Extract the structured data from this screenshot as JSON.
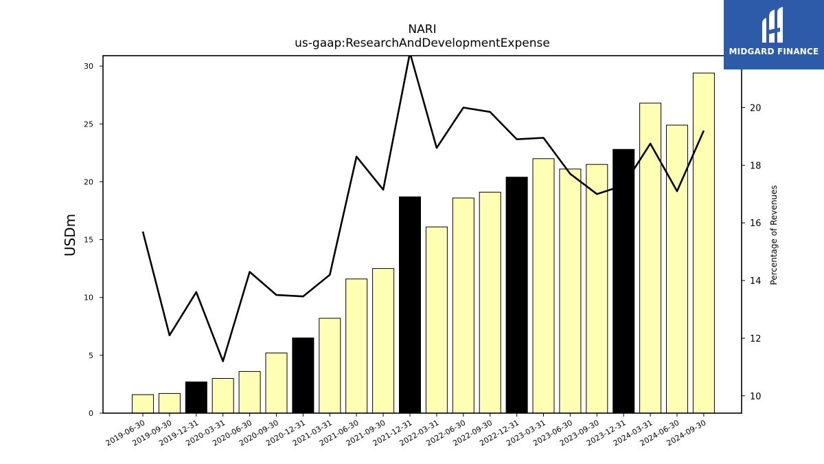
{
  "chart_data": {
    "type": "bar",
    "title": "NARI",
    "subtitle": "us-gaap:ResearchAndDevelopmentExpense",
    "ylabel": "USDm",
    "y2label": "Percentage of Revenues",
    "ylim": [
      0,
      30.9
    ],
    "y2lim": [
      9.4,
      21.8
    ],
    "yticks": [
      0,
      5,
      10,
      15,
      20,
      25,
      30
    ],
    "y2ticks": [
      10,
      12,
      14,
      16,
      18,
      20
    ],
    "categories": [
      "2019-06-30",
      "2019-09-30",
      "2019-12-31",
      "2020-03-31",
      "2020-06-30",
      "2020-09-30",
      "2020-12-31",
      "2021-03-31",
      "2021-06-30",
      "2021-09-30",
      "2021-12-31",
      "2022-03-31",
      "2022-06-30",
      "2022-09-30",
      "2022-12-31",
      "2023-03-31",
      "2023-06-30",
      "2023-09-30",
      "2023-12-31",
      "2024-03-31",
      "2024-06-30",
      "2024-09-30"
    ],
    "series": [
      {
        "type": "bar",
        "axis": "left",
        "values": [
          1.6,
          1.7,
          2.7,
          3.0,
          3.6,
          5.2,
          6.5,
          8.2,
          11.6,
          12.5,
          18.7,
          16.1,
          18.6,
          19.1,
          20.4,
          22.0,
          21.1,
          21.5,
          22.8,
          26.8,
          24.9,
          29.4
        ],
        "colors": [
          "#ffffb4",
          "#ffffb4",
          "#000000",
          "#ffffb4",
          "#ffffb4",
          "#ffffb4",
          "#000000",
          "#ffffb4",
          "#ffffb4",
          "#ffffb4",
          "#000000",
          "#ffffb4",
          "#ffffb4",
          "#ffffb4",
          "#000000",
          "#ffffb4",
          "#ffffb4",
          "#ffffb4",
          "#000000",
          "#ffffb4",
          "#ffffb4",
          "#ffffb4"
        ]
      },
      {
        "type": "line",
        "axis": "right",
        "color": "#000000",
        "values": [
          15.7,
          12.1,
          13.6,
          11.2,
          14.3,
          13.5,
          13.45,
          14.2,
          18.3,
          17.15,
          21.9,
          18.6,
          20.0,
          19.85,
          18.9,
          18.95,
          17.7,
          17.0,
          17.3,
          18.75,
          17.1,
          19.2
        ]
      }
    ]
  },
  "logo": {
    "text": "MIDGARD FINANCE",
    "color": "#2e5aaa"
  }
}
